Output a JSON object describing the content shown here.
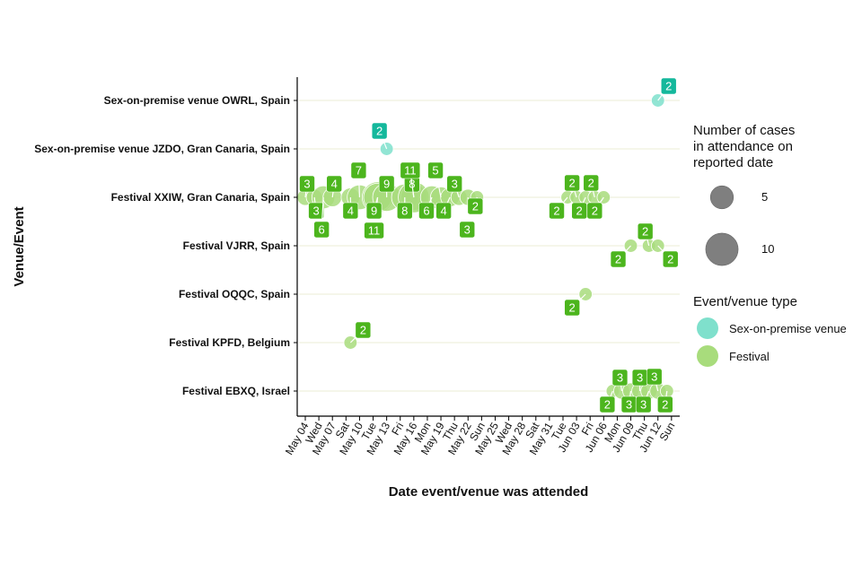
{
  "chart_data": {
    "type": "scatter",
    "title": "",
    "xlabel": "Date event/venue was attended",
    "ylabel": "Venue/Event",
    "x_tick_labels": [
      "May 04",
      "Wed",
      "May 07",
      "Sat",
      "May 10",
      "Tue",
      "May 13",
      "Fri",
      "May 16",
      "Mon",
      "May 19",
      "Thu",
      "May 22",
      "Sun",
      "May 25",
      "Wed",
      "May 28",
      "Sat",
      "May 31",
      "Tue",
      "Jun 03",
      "Fri",
      "Jun 06",
      "Mon",
      "Jun 09",
      "Thu",
      "Jun 12",
      "Sun"
    ],
    "x_range": [
      "2022-05-04",
      "2022-06-14"
    ],
    "categories": [
      "Sex-on-premise venue OWRL, Spain",
      "Sex-on-premise venue JZDO, Gran Canaria, Spain",
      "Festival XXIW, Gran Canaria, Spain",
      "Festival VJRR, Spain",
      "Festival OQQC, Spain",
      "Festival KPFD, Belgium",
      "Festival EBXQ, Israel"
    ],
    "types": [
      {
        "name": "Sex-on-premise venue",
        "color": "#7fe0cc",
        "label_color": "#14b89c"
      },
      {
        "name": "Festival",
        "color": "#a8dc7c",
        "label_color": "#4cb51d"
      }
    ],
    "legend_size": {
      "title": "Number of cases\n in attendance on\n reported date",
      "entries": [
        {
          "label": "5",
          "value": 5
        },
        {
          "label": "10",
          "value": 10
        }
      ]
    },
    "legend_type_title": "Event/venue type",
    "legend_position": "right",
    "grid": "horizontal",
    "points": [
      {
        "event": "Sex-on-premise venue OWRL, Spain",
        "type": "Sex-on-premise venue",
        "date": "2022-06-12",
        "cases": 2
      },
      {
        "event": "Sex-on-premise venue JZDO, Gran Canaria, Spain",
        "type": "Sex-on-premise venue",
        "date": "2022-05-13",
        "cases": 2
      },
      {
        "event": "Festival XXIW, Gran Canaria, Spain",
        "type": "Festival",
        "date": "2022-05-04",
        "cases": 3
      },
      {
        "event": "Festival XXIW, Gran Canaria, Spain",
        "type": "Festival",
        "date": "2022-05-05",
        "cases": 3
      },
      {
        "event": "Festival XXIW, Gran Canaria, Spain",
        "type": "Festival",
        "date": "2022-05-06",
        "cases": 6
      },
      {
        "event": "Festival XXIW, Gran Canaria, Spain",
        "type": "Festival",
        "date": "2022-05-07",
        "cases": 4
      },
      {
        "event": "Festival XXIW, Gran Canaria, Spain",
        "type": "Festival",
        "date": "2022-05-09",
        "cases": 4
      },
      {
        "event": "Festival XXIW, Gran Canaria, Spain",
        "type": "Festival",
        "date": "2022-05-10",
        "cases": 7
      },
      {
        "event": "Festival XXIW, Gran Canaria, Spain",
        "type": "Festival",
        "date": "2022-05-12",
        "cases": 11
      },
      {
        "event": "Festival XXIW, Gran Canaria, Spain",
        "type": "Festival",
        "date": "2022-05-12",
        "cases": 9
      },
      {
        "event": "Festival XXIW, Gran Canaria, Spain",
        "type": "Festival",
        "date": "2022-05-13",
        "cases": 9
      },
      {
        "event": "Festival XXIW, Gran Canaria, Spain",
        "type": "Festival",
        "date": "2022-05-15",
        "cases": 8
      },
      {
        "event": "Festival XXIW, Gran Canaria, Spain",
        "type": "Festival",
        "date": "2022-05-16",
        "cases": 8
      },
      {
        "event": "Festival XXIW, Gran Canaria, Spain",
        "type": "Festival",
        "date": "2022-05-16",
        "cases": 11
      },
      {
        "event": "Festival XXIW, Gran Canaria, Spain",
        "type": "Festival",
        "date": "2022-05-18",
        "cases": 6
      },
      {
        "event": "Festival XXIW, Gran Canaria, Spain",
        "type": "Festival",
        "date": "2022-05-19",
        "cases": 5
      },
      {
        "event": "Festival XXIW, Gran Canaria, Spain",
        "type": "Festival",
        "date": "2022-05-20",
        "cases": 4
      },
      {
        "event": "Festival XXIW, Gran Canaria, Spain",
        "type": "Festival",
        "date": "2022-05-21",
        "cases": 3
      },
      {
        "event": "Festival XXIW, Gran Canaria, Spain",
        "type": "Festival",
        "date": "2022-05-22",
        "cases": 3
      },
      {
        "event": "Festival XXIW, Gran Canaria, Spain",
        "type": "Festival",
        "date": "2022-05-23",
        "cases": 2
      },
      {
        "event": "Festival XXIW, Gran Canaria, Spain",
        "type": "Festival",
        "date": "2022-06-02",
        "cases": 2
      },
      {
        "event": "Festival XXIW, Gran Canaria, Spain",
        "type": "Festival",
        "date": "2022-06-03",
        "cases": 2
      },
      {
        "event": "Festival XXIW, Gran Canaria, Spain",
        "type": "Festival",
        "date": "2022-06-04",
        "cases": 2
      },
      {
        "event": "Festival XXIW, Gran Canaria, Spain",
        "type": "Festival",
        "date": "2022-06-05",
        "cases": 2
      },
      {
        "event": "Festival XXIW, Gran Canaria, Spain",
        "type": "Festival",
        "date": "2022-06-06",
        "cases": 2
      },
      {
        "event": "Festival VJRR, Spain",
        "type": "Festival",
        "date": "2022-06-09",
        "cases": 2
      },
      {
        "event": "Festival VJRR, Spain",
        "type": "Festival",
        "date": "2022-06-11",
        "cases": 2
      },
      {
        "event": "Festival VJRR, Spain",
        "type": "Festival",
        "date": "2022-06-12",
        "cases": 2
      },
      {
        "event": "Festival OQQC, Spain",
        "type": "Festival",
        "date": "2022-06-04",
        "cases": 2
      },
      {
        "event": "Festival KPFD, Belgium",
        "type": "Festival",
        "date": "2022-05-09",
        "cases": 2
      },
      {
        "event": "Festival EBXQ, Israel",
        "type": "Festival",
        "date": "2022-06-07",
        "cases": 2
      },
      {
        "event": "Festival EBXQ, Israel",
        "type": "Festival",
        "date": "2022-06-08",
        "cases": 3
      },
      {
        "event": "Festival EBXQ, Israel",
        "type": "Festival",
        "date": "2022-06-09",
        "cases": 3
      },
      {
        "event": "Festival EBXQ, Israel",
        "type": "Festival",
        "date": "2022-06-10",
        "cases": 3
      },
      {
        "event": "Festival EBXQ, Israel",
        "type": "Festival",
        "date": "2022-06-11",
        "cases": 3
      },
      {
        "event": "Festival EBXQ, Israel",
        "type": "Festival",
        "date": "2022-06-12",
        "cases": 3
      },
      {
        "event": "Festival EBXQ, Israel",
        "type": "Festival",
        "date": "2022-06-13",
        "cases": 2
      }
    ]
  }
}
